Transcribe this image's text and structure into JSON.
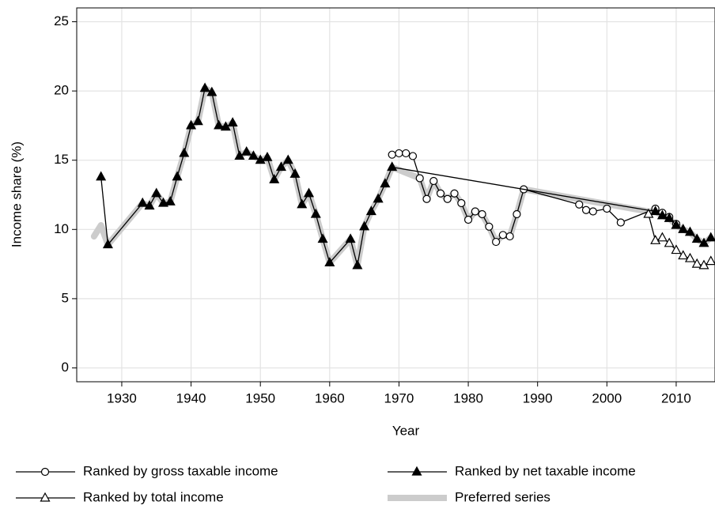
{
  "chart_data": {
    "type": "line",
    "x_label": "Year",
    "y_label": "Income share (%)",
    "xlim": [
      1923.5,
      2015.6
    ],
    "ylim": [
      -1,
      26
    ],
    "xticks": [
      1930,
      1940,
      1950,
      1960,
      1970,
      1980,
      1990,
      2000,
      2010
    ],
    "yticks": [
      0,
      5,
      10,
      15,
      20,
      25
    ],
    "grid": true,
    "series": [
      {
        "name": "Preferred series",
        "color": "#cccccc",
        "marker": "none",
        "x": [
          1926,
          1927,
          1928,
          1933,
          1934,
          1935,
          1936,
          1937,
          1938,
          1939,
          1940,
          1941,
          1942,
          1943,
          1944,
          1945,
          1946,
          1947,
          1948,
          1949,
          1950,
          1951,
          1952,
          1953,
          1954,
          1955,
          1956,
          1957,
          1958,
          1959,
          1960,
          1963,
          1964,
          1965,
          1966,
          1967,
          1968,
          1969,
          1973,
          1974,
          1975,
          1976,
          1977,
          1978,
          1979,
          1980,
          1981,
          1982,
          1983,
          1984,
          1985,
          1986,
          1987,
          1988,
          2006,
          2007,
          2008,
          2009,
          2010,
          2011,
          2012,
          2013,
          2014,
          2015
        ],
        "values": [
          9.5,
          10.3,
          8.9,
          11.9,
          11.7,
          12.6,
          11.9,
          12.0,
          13.8,
          15.5,
          17.5,
          17.8,
          20.2,
          19.9,
          17.5,
          17.4,
          17.7,
          15.3,
          15.6,
          15.3,
          15.0,
          15.2,
          13.6,
          14.5,
          15.0,
          14.0,
          11.8,
          12.6,
          11.1,
          9.3,
          7.6,
          9.3,
          7.4,
          10.2,
          11.3,
          12.2,
          13.3,
          14.5,
          13.7,
          12.2,
          13.5,
          12.6,
          12.2,
          12.6,
          11.9,
          10.7,
          11.3,
          11.1,
          10.2,
          9.1,
          9.6,
          9.5,
          11.1,
          12.9,
          11.3,
          11.3,
          11.0,
          10.8,
          10.3,
          10.0,
          9.8,
          9.3,
          9.0,
          9.4
        ]
      },
      {
        "name": "Ranked by gross taxable income",
        "color": "#000000",
        "marker": "circle-open",
        "x": [
          1969,
          1970,
          1971,
          1972,
          1973,
          1974,
          1975,
          1976,
          1977,
          1978,
          1979,
          1980,
          1981,
          1982,
          1983,
          1984,
          1985,
          1986,
          1987,
          1988,
          1996,
          1997,
          1998,
          2000,
          2002,
          2007,
          2008,
          2009,
          2010
        ],
        "values": [
          15.4,
          15.5,
          15.5,
          15.3,
          13.7,
          12.2,
          13.5,
          12.6,
          12.2,
          12.6,
          11.9,
          10.7,
          11.3,
          11.1,
          10.2,
          9.1,
          9.6,
          9.5,
          11.1,
          12.9,
          11.8,
          11.4,
          11.3,
          11.5,
          10.5,
          11.5,
          11.2,
          10.9,
          10.4
        ]
      },
      {
        "name": "Ranked by net taxable income",
        "color": "#000000",
        "marker": "triangle-filled",
        "x": [
          1927,
          1928,
          1933,
          1934,
          1935,
          1936,
          1937,
          1938,
          1939,
          1940,
          1941,
          1942,
          1943,
          1944,
          1945,
          1946,
          1947,
          1948,
          1949,
          1950,
          1951,
          1952,
          1953,
          1954,
          1955,
          1956,
          1957,
          1958,
          1959,
          1960,
          1963,
          1964,
          1965,
          1966,
          1967,
          1968,
          1969,
          2007,
          2008,
          2009,
          2010,
          2011,
          2012,
          2013,
          2014,
          2015
        ],
        "values": [
          13.8,
          8.9,
          11.9,
          11.7,
          12.6,
          11.9,
          12.0,
          13.8,
          15.5,
          17.5,
          17.8,
          20.2,
          19.9,
          17.5,
          17.4,
          17.7,
          15.3,
          15.6,
          15.3,
          15.0,
          15.2,
          13.6,
          14.5,
          15.0,
          14.0,
          11.8,
          12.6,
          11.1,
          9.3,
          7.6,
          9.3,
          7.4,
          10.2,
          11.3,
          12.2,
          13.3,
          14.5,
          11.3,
          11.0,
          10.8,
          10.3,
          10.0,
          9.8,
          9.3,
          9.0,
          9.4
        ]
      },
      {
        "name": "Ranked by total income",
        "color": "#000000",
        "marker": "triangle-open",
        "x": [
          2006,
          2007,
          2008,
          2009,
          2010,
          2011,
          2012,
          2013,
          2014,
          2015
        ],
        "values": [
          11.1,
          9.2,
          9.4,
          9.0,
          8.5,
          8.1,
          7.9,
          7.5,
          7.4,
          7.7
        ]
      }
    ]
  }
}
